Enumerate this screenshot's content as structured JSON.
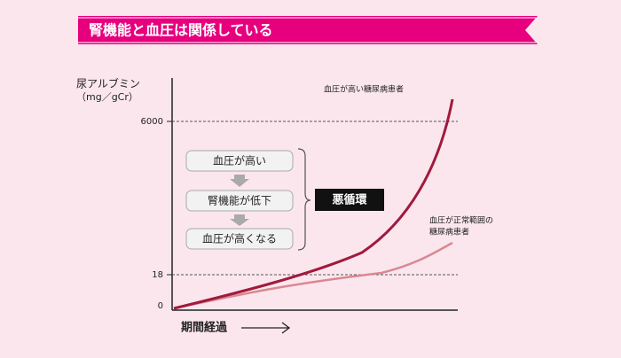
{
  "header": {
    "title": "腎機能と血圧は関係している"
  },
  "axis": {
    "y_label": "尿アルブミン",
    "y_unit": "（mg／gCr）",
    "ticks": [
      "6000",
      "18",
      "0"
    ],
    "x_label": "期間経過"
  },
  "cycle": {
    "steps": [
      "血圧が高い",
      "腎機能が低下",
      "血圧が高くなる"
    ],
    "label": "悪循環"
  },
  "curves": {
    "high": "血圧が高い糖尿病患者",
    "normal": [
      "血圧が正常範囲の",
      "糖尿病患者"
    ]
  }
}
